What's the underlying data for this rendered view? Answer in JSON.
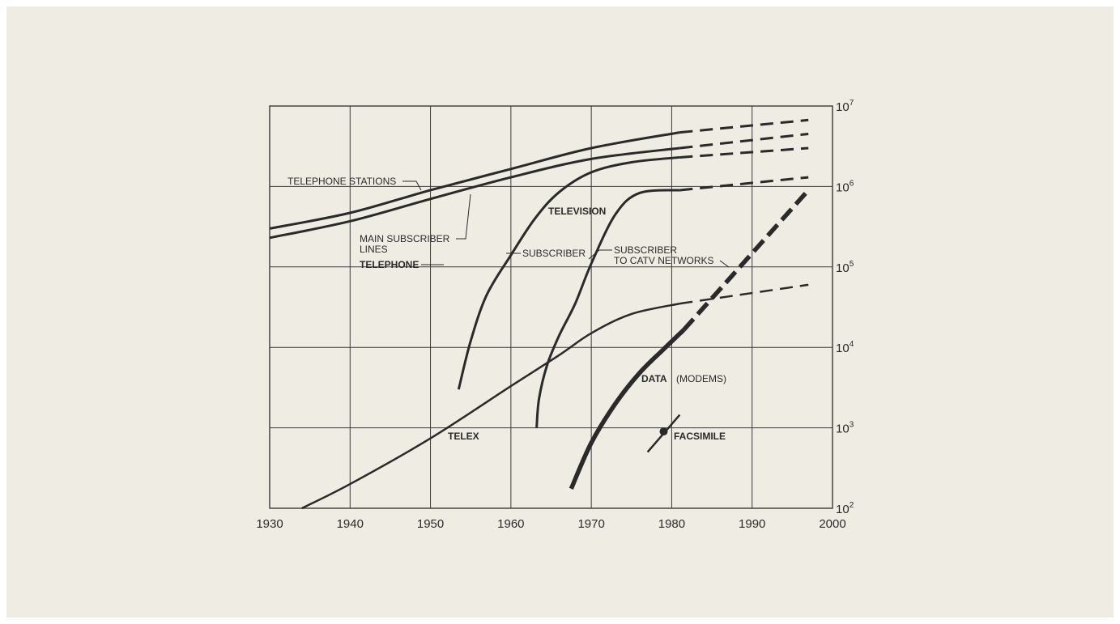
{
  "chart_data": {
    "type": "line",
    "xlim": [
      1930,
      2000
    ],
    "ylim": [
      100,
      10000000
    ],
    "yscale": "log",
    "x_ticks": [
      "1930",
      "1940",
      "1950",
      "1960",
      "1970",
      "1980",
      "1990",
      "2000"
    ],
    "y_ticks": [
      {
        "base": "10",
        "exp": "2",
        "value": 100
      },
      {
        "base": "10",
        "exp": "3",
        "value": 1000
      },
      {
        "base": "10",
        "exp": "4",
        "value": 10000
      },
      {
        "base": "10",
        "exp": "5",
        "value": 100000
      },
      {
        "base": "10",
        "exp": "6",
        "value": 1000000
      },
      {
        "base": "10",
        "exp": "7",
        "value": 10000000
      }
    ],
    "grid": true,
    "series": [
      {
        "key": "telephone_stations",
        "stroke": 3,
        "solid": [
          [
            1930,
            300000
          ],
          [
            1940,
            470000
          ],
          [
            1950,
            900000
          ],
          [
            1960,
            1650000
          ],
          [
            1970,
            3000000
          ],
          [
            1981,
            4700000
          ]
        ],
        "projected": [
          [
            1981,
            4700000
          ],
          [
            1997,
            6700000
          ]
        ]
      },
      {
        "key": "main_subscriber_lines",
        "stroke": 3,
        "solid": [
          [
            1930,
            230000
          ],
          [
            1940,
            370000
          ],
          [
            1950,
            700000
          ],
          [
            1960,
            1300000
          ],
          [
            1970,
            2200000
          ],
          [
            1981,
            3000000
          ]
        ],
        "projected": [
          [
            1981,
            3000000
          ],
          [
            1997,
            4500000
          ]
        ]
      },
      {
        "key": "television_subscriber",
        "stroke": 3,
        "solid": [
          [
            1953.5,
            3000
          ],
          [
            1955,
            12000
          ],
          [
            1957,
            45000
          ],
          [
            1960,
            140000
          ],
          [
            1963,
            400000
          ],
          [
            1966,
            850000
          ],
          [
            1970,
            1500000
          ],
          [
            1975,
            2000000
          ],
          [
            1981,
            2300000
          ]
        ],
        "projected": [
          [
            1981,
            2300000
          ],
          [
            1997,
            3000000
          ]
        ]
      },
      {
        "key": "catv_subscriber",
        "stroke": 3,
        "solid": [
          [
            1963.2,
            1000
          ],
          [
            1963.5,
            2300
          ],
          [
            1964.5,
            6000
          ],
          [
            1966,
            14000
          ],
          [
            1968,
            35000
          ],
          [
            1970,
            110000
          ],
          [
            1973,
            450000
          ],
          [
            1976,
            830000
          ],
          [
            1981,
            900000
          ]
        ],
        "projected": [
          [
            1981,
            900000
          ],
          [
            1997,
            1300000
          ]
        ]
      },
      {
        "key": "telex",
        "stroke": 2.5,
        "solid": [
          [
            1934,
            100
          ],
          [
            1940,
            200
          ],
          [
            1950,
            740
          ],
          [
            1960,
            3300
          ],
          [
            1966,
            8000
          ],
          [
            1970,
            15000
          ],
          [
            1975,
            26000
          ],
          [
            1981,
            35000
          ]
        ],
        "projected": [
          [
            1981,
            35000
          ],
          [
            1997,
            60000
          ]
        ]
      },
      {
        "key": "data_modems",
        "stroke": 5.5,
        "solid": [
          [
            1967.5,
            175
          ],
          [
            1970,
            650
          ],
          [
            1973,
            2000
          ],
          [
            1976,
            4800
          ],
          [
            1979,
            9500
          ],
          [
            1981.5,
            16500
          ]
        ],
        "projected": [
          [
            1981.5,
            16500
          ],
          [
            1997,
            900000
          ]
        ]
      },
      {
        "key": "facsimile",
        "stroke": 2.5,
        "solid": [
          [
            1977,
            500
          ],
          [
            1981,
            1450
          ]
        ],
        "projected": [],
        "marker": [
          1979,
          900
        ]
      }
    ],
    "labels": {
      "telephone_stations": "TELEPHONE STATIONS",
      "main_subscriber_lines_1": "MAIN SUBSCRIBER",
      "main_subscriber_lines_2": "LINES",
      "telephone": "TELEPHONE",
      "television": "TELEVISION",
      "subscriber": "SUBSCRIBER",
      "catv_1": "SUBSCRIBER",
      "catv_2": "TO CATV NETWORKS",
      "telex": "TELEX",
      "data": "DATA",
      "modems": "(MODEMS)",
      "facsimile": "FACSIMILE"
    }
  },
  "colors": {
    "paper": "#efece4",
    "ink": "#2a2a2a",
    "grid": "#3a3a3a"
  }
}
